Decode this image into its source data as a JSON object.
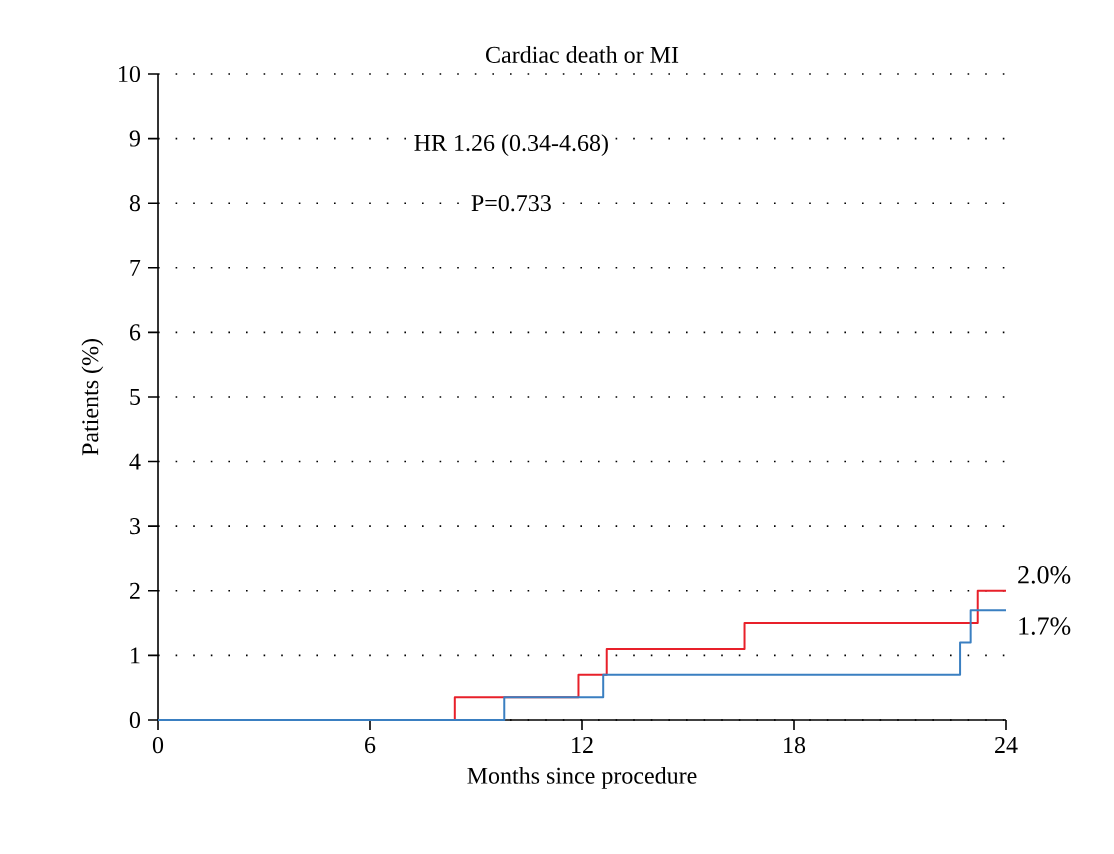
{
  "chart_data": {
    "type": "step",
    "title": "Cardiac death or MI",
    "xlabel": "Months since procedure",
    "ylabel": "Patients (%)",
    "xlim": [
      0,
      24
    ],
    "xticks": [
      0,
      6,
      12,
      18,
      24
    ],
    "ylim": [
      0,
      10
    ],
    "yticks": [
      0,
      1,
      2,
      3,
      4,
      5,
      6,
      7,
      8,
      9,
      10
    ],
    "grid": "y",
    "series": [
      {
        "color": "#e8202a",
        "x": [
          0,
          8.4,
          11.9,
          12.7,
          16.6,
          23.2,
          24
        ],
        "values": [
          0,
          0.35,
          0.7,
          1.1,
          1.5,
          2.0,
          2.0
        ]
      },
      {
        "color": "#3a7fc1",
        "x": [
          0,
          9.8,
          12.6,
          22.7,
          23.0,
          24
        ],
        "values": [
          0,
          0.35,
          0.7,
          1.2,
          1.7,
          1.7
        ]
      }
    ],
    "annotations": [
      "HR 1.26 (0.34-4.68)",
      "P=0.733",
      {
        "text": "2.0%",
        "x": 24,
        "y": 2.0
      },
      {
        "text": "1.7%",
        "x": 24,
        "y": 1.7
      }
    ]
  }
}
